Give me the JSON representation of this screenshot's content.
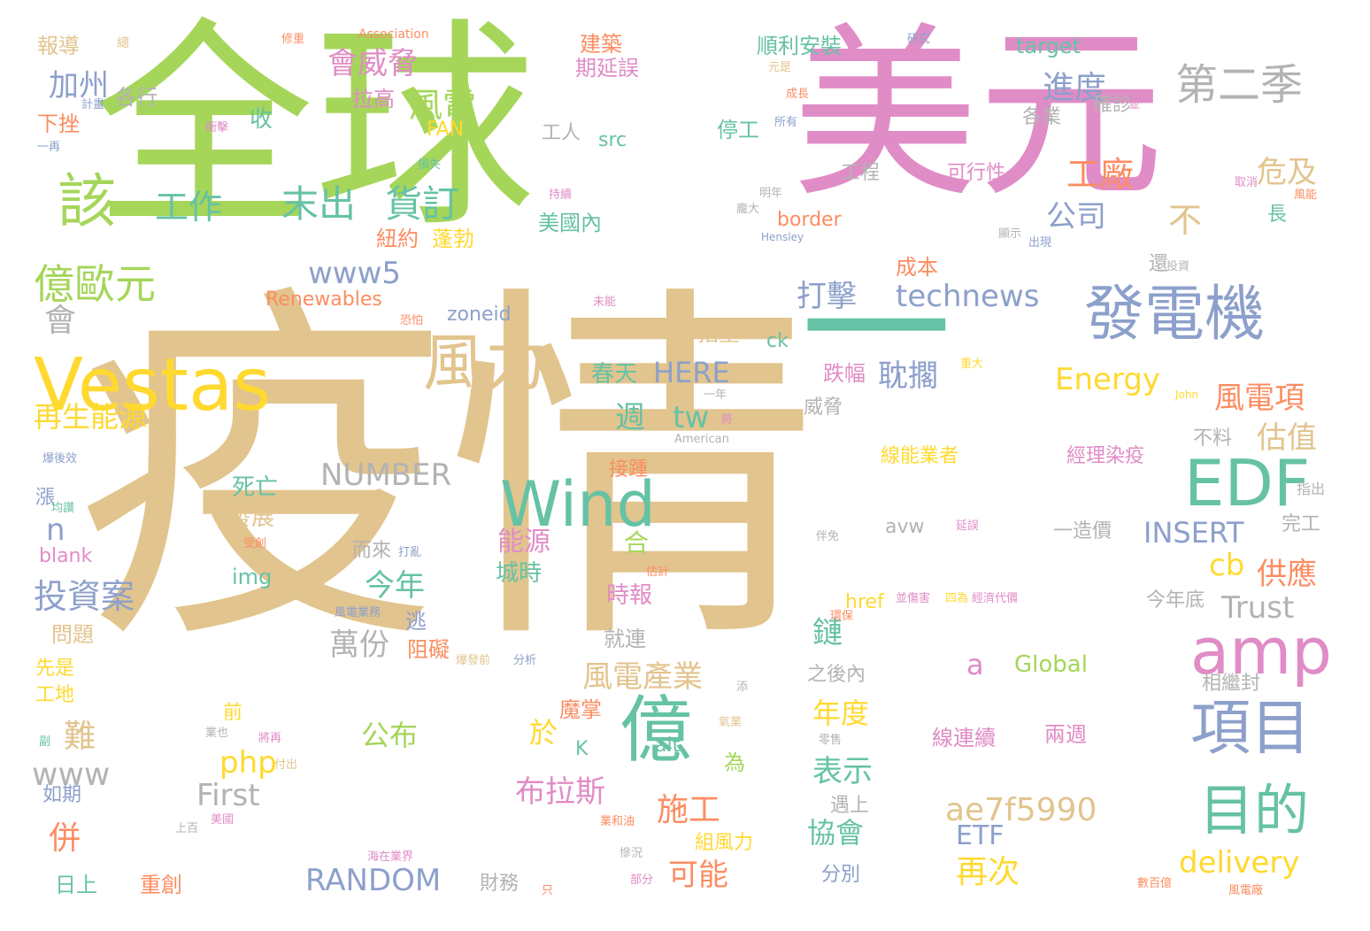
{
  "palette": {
    "tan": "#e2c48e",
    "green": "#a5d65a",
    "pink": "#e08cc6",
    "blue": "#8da0cb",
    "teal": "#66c2a5",
    "orange": "#fc8d62",
    "yellow": "#ffd92f",
    "gray": "#b3b3b3"
  },
  "words": [
    {
      "text": "疫情",
      "color": "tan"
    },
    {
      "text": "全球",
      "color": "green"
    },
    {
      "text": "美元",
      "color": "pink"
    },
    {
      "text": "一",
      "color": "teal"
    },
    {
      "text": "Vestas",
      "color": "yellow"
    },
    {
      "text": "發電機",
      "color": "blue"
    },
    {
      "text": "風力",
      "color": "tan"
    },
    {
      "text": "Wind",
      "color": "teal"
    },
    {
      "text": "億",
      "color": "teal"
    },
    {
      "text": "EDF",
      "color": "teal"
    },
    {
      "text": "amp",
      "color": "pink"
    },
    {
      "text": "項目",
      "color": "blue"
    },
    {
      "text": "目的",
      "color": "teal"
    },
    {
      "text": "該",
      "color": "green"
    },
    {
      "text": "第二季",
      "color": "gray"
    },
    {
      "text": "億歐元",
      "color": "green"
    },
    {
      "text": "末出",
      "color": "teal"
    },
    {
      "text": "貨訂",
      "color": "teal"
    },
    {
      "text": "www5",
      "color": "blue"
    },
    {
      "text": "technews",
      "color": "blue"
    },
    {
      "text": "ae7f5990",
      "color": "tan"
    },
    {
      "text": "RANDOM",
      "color": "blue"
    },
    {
      "text": "NUMBER",
      "color": "gray"
    },
    {
      "text": "HERE",
      "color": "blue"
    },
    {
      "text": "INSERT",
      "color": "blue"
    },
    {
      "text": "Energy",
      "color": "yellow"
    },
    {
      "text": "delivery",
      "color": "yellow"
    },
    {
      "text": "Trust",
      "color": "gray"
    },
    {
      "text": "Global",
      "color": "green"
    },
    {
      "text": "First",
      "color": "gray"
    },
    {
      "text": "php",
      "color": "yellow"
    },
    {
      "text": "ETF",
      "color": "blue"
    },
    {
      "text": "www",
      "color": "gray"
    },
    {
      "text": "Renewables",
      "color": "orange"
    },
    {
      "text": "zoneid",
      "color": "blue"
    },
    {
      "text": "border",
      "color": "orange"
    },
    {
      "text": "target",
      "color": "teal"
    },
    {
      "text": "src",
      "color": "teal"
    },
    {
      "text": "img",
      "color": "teal"
    },
    {
      "text": "href",
      "color": "yellow"
    },
    {
      "text": "avw",
      "color": "gray"
    },
    {
      "text": "blank",
      "color": "pink"
    },
    {
      "text": "FAN",
      "color": "yellow"
    },
    {
      "text": "ck",
      "color": "teal"
    },
    {
      "text": "alt",
      "color": "teal"
    },
    {
      "text": "tw",
      "color": "teal"
    },
    {
      "text": "cb",
      "color": "yellow"
    },
    {
      "text": "n",
      "color": "blue"
    },
    {
      "text": "a",
      "color": "pink"
    },
    {
      "text": "K",
      "color": "teal"
    },
    {
      "text": "Association",
      "color": "orange"
    },
    {
      "text": "American",
      "color": "gray"
    },
    {
      "text": "John",
      "color": "yellow"
    },
    {
      "text": "Hensley",
      "color": "blue"
    },
    {
      "text": "工作",
      "color": "teal"
    },
    {
      "text": "加州",
      "color": "blue"
    },
    {
      "text": "各行",
      "color": "gray"
    },
    {
      "text": "會威脅",
      "color": "pink"
    },
    {
      "text": "風電",
      "color": "green"
    },
    {
      "text": "進度",
      "color": "blue"
    },
    {
      "text": "工廠",
      "color": "orange"
    },
    {
      "text": "危及",
      "color": "tan"
    },
    {
      "text": "公司",
      "color": "blue"
    },
    {
      "text": "打擊",
      "color": "blue"
    },
    {
      "text": "耽擱",
      "color": "blue"
    },
    {
      "text": "風電項",
      "color": "orange"
    },
    {
      "text": "估值",
      "color": "tan"
    },
    {
      "text": "再生能源",
      "color": "yellow"
    },
    {
      "text": "供應",
      "color": "orange"
    },
    {
      "text": "投資案",
      "color": "blue"
    },
    {
      "text": "今年",
      "color": "teal"
    },
    {
      "text": "萬份",
      "color": "gray"
    },
    {
      "text": "風電產業",
      "color": "tan"
    },
    {
      "text": "年度",
      "color": "yellow"
    },
    {
      "text": "表示",
      "color": "teal"
    },
    {
      "text": "施工",
      "color": "orange"
    },
    {
      "text": "協會",
      "color": "teal"
    },
    {
      "text": "可能",
      "color": "orange"
    },
    {
      "text": "再次",
      "color": "yellow"
    },
    {
      "text": "布拉斯",
      "color": "pink"
    },
    {
      "text": "公布",
      "color": "green"
    },
    {
      "text": "線能業者",
      "color": "yellow"
    },
    {
      "text": "經理染疫",
      "color": "pink"
    },
    {
      "text": "線連續",
      "color": "pink"
    },
    {
      "text": "兩週",
      "color": "pink"
    },
    {
      "text": "時報",
      "color": "pink"
    },
    {
      "text": "城時",
      "color": "teal"
    },
    {
      "text": "能源",
      "color": "pink"
    },
    {
      "text": "跌幅",
      "color": "pink"
    },
    {
      "text": "春天",
      "color": "teal"
    },
    {
      "text": "美國內",
      "color": "teal"
    },
    {
      "text": "順利安裝",
      "color": "teal"
    },
    {
      "text": "期延誤",
      "color": "pink"
    },
    {
      "text": "建築",
      "color": "orange"
    },
    {
      "text": "紐約",
      "color": "orange"
    },
    {
      "text": "蓬勃",
      "color": "yellow"
    },
    {
      "text": "收",
      "color": "teal"
    },
    {
      "text": "拉高",
      "color": "pink"
    },
    {
      "text": "報導",
      "color": "tan"
    },
    {
      "text": "下挫",
      "color": "orange"
    },
    {
      "text": "發展",
      "color": "tan"
    },
    {
      "text": "死亡",
      "color": "teal"
    },
    {
      "text": "成本",
      "color": "orange"
    },
    {
      "text": "指望",
      "color": "tan"
    },
    {
      "text": "停工",
      "color": "teal"
    },
    {
      "text": "工人",
      "color": "gray"
    },
    {
      "text": "工程",
      "color": "gray"
    },
    {
      "text": "各業",
      "color": "gray"
    },
    {
      "text": "確診",
      "color": "gray"
    },
    {
      "text": "可行性",
      "color": "pink"
    },
    {
      "text": "難",
      "color": "tan"
    },
    {
      "text": "併",
      "color": "orange"
    },
    {
      "text": "漲",
      "color": "blue"
    },
    {
      "text": "會",
      "color": "gray"
    },
    {
      "text": "問題",
      "color": "tan"
    },
    {
      "text": "先是",
      "color": "yellow"
    },
    {
      "text": "工地",
      "color": "yellow"
    },
    {
      "text": "如期",
      "color": "blue"
    },
    {
      "text": "日上",
      "color": "teal"
    },
    {
      "text": "重創",
      "color": "orange"
    },
    {
      "text": "財務",
      "color": "gray"
    },
    {
      "text": "組風力",
      "color": "yellow"
    },
    {
      "text": "分別",
      "color": "blue"
    },
    {
      "text": "遇上",
      "color": "gray"
    },
    {
      "text": "魔掌",
      "color": "orange"
    },
    {
      "text": "阻礙",
      "color": "orange"
    },
    {
      "text": "逃",
      "color": "blue"
    },
    {
      "text": "就連",
      "color": "gray"
    },
    {
      "text": "之後內",
      "color": "gray"
    },
    {
      "text": "相繼封",
      "color": "gray"
    },
    {
      "text": "今年底",
      "color": "gray"
    },
    {
      "text": "一造價",
      "color": "gray"
    },
    {
      "text": "完工",
      "color": "gray"
    },
    {
      "text": "不料",
      "color": "gray"
    },
    {
      "text": "威脅",
      "color": "gray"
    },
    {
      "text": "接踵",
      "color": "orange"
    },
    {
      "text": "合",
      "color": "green"
    },
    {
      "text": "週",
      "color": "teal"
    },
    {
      "text": "鏈",
      "color": "teal"
    },
    {
      "text": "於",
      "color": "yellow"
    },
    {
      "text": "為",
      "color": "green"
    },
    {
      "text": "前",
      "color": "yellow"
    },
    {
      "text": "而來",
      "color": "gray"
    },
    {
      "text": "不",
      "color": "tan"
    },
    {
      "text": "還",
      "color": "gray"
    },
    {
      "text": "長",
      "color": "teal"
    },
    {
      "text": "指出",
      "color": "gray"
    },
    {
      "text": "研究",
      "color": "blue"
    },
    {
      "text": "計畫",
      "color": "blue"
    },
    {
      "text": "衝擊",
      "color": "pink"
    },
    {
      "text": "一再",
      "color": "blue"
    },
    {
      "text": "損失",
      "color": "teal"
    },
    {
      "text": "持續",
      "color": "pink"
    },
    {
      "text": "明年",
      "color": "gray"
    },
    {
      "text": "龐大",
      "color": "gray"
    },
    {
      "text": "顯示",
      "color": "gray"
    },
    {
      "text": "出現",
      "color": "blue"
    },
    {
      "text": "投資",
      "color": "gray"
    },
    {
      "text": "未能",
      "color": "pink"
    },
    {
      "text": "恐怕",
      "color": "orange"
    },
    {
      "text": "重大",
      "color": "yellow"
    },
    {
      "text": "一年",
      "color": "gray"
    },
    {
      "text": "將",
      "color": "pink"
    },
    {
      "text": "延誤",
      "color": "pink"
    },
    {
      "text": "打亂",
      "color": "blue"
    },
    {
      "text": "估計",
      "color": "orange"
    },
    {
      "text": "受創",
      "color": "orange"
    },
    {
      "text": "分析",
      "color": "blue"
    },
    {
      "text": "爆發前",
      "color": "tan"
    },
    {
      "text": "付出",
      "color": "tan"
    },
    {
      "text": "業和油",
      "color": "orange"
    },
    {
      "text": "慘況",
      "color": "gray"
    },
    {
      "text": "部分",
      "color": "pink"
    },
    {
      "text": "只",
      "color": "orange"
    },
    {
      "text": "數百億",
      "color": "orange"
    },
    {
      "text": "風電廠",
      "color": "orange"
    },
    {
      "text": "零售",
      "color": "gray"
    },
    {
      "text": "經濟代價",
      "color": "pink"
    },
    {
      "text": "並傷害",
      "color": "pink"
    },
    {
      "text": "四為",
      "color": "yellow"
    },
    {
      "text": "美國",
      "color": "pink"
    },
    {
      "text": "上百",
      "color": "gray"
    },
    {
      "text": "總",
      "color": "tan"
    },
    {
      "text": "修重",
      "color": "orange"
    },
    {
      "text": "元是",
      "color": "tan"
    },
    {
      "text": "成長",
      "color": "orange"
    },
    {
      "text": "所有",
      "color": "blue"
    },
    {
      "text": "並",
      "color": "pink"
    },
    {
      "text": "取消",
      "color": "pink"
    },
    {
      "text": "風能",
      "color": "orange"
    },
    {
      "text": "伴免",
      "color": "gray"
    },
    {
      "text": "均讚",
      "color": "teal"
    },
    {
      "text": "副",
      "color": "teal"
    },
    {
      "text": "業也",
      "color": "gray"
    },
    {
      "text": "將再",
      "color": "pink"
    },
    {
      "text": "氣業",
      "color": "tan"
    },
    {
      "text": "添",
      "color": "gray"
    },
    {
      "text": "風電業務",
      "color": "blue"
    },
    {
      "text": "環保",
      "color": "orange"
    },
    {
      "text": "爆後效",
      "color": "blue"
    },
    {
      "text": "海在業界",
      "color": "pink"
    }
  ]
}
